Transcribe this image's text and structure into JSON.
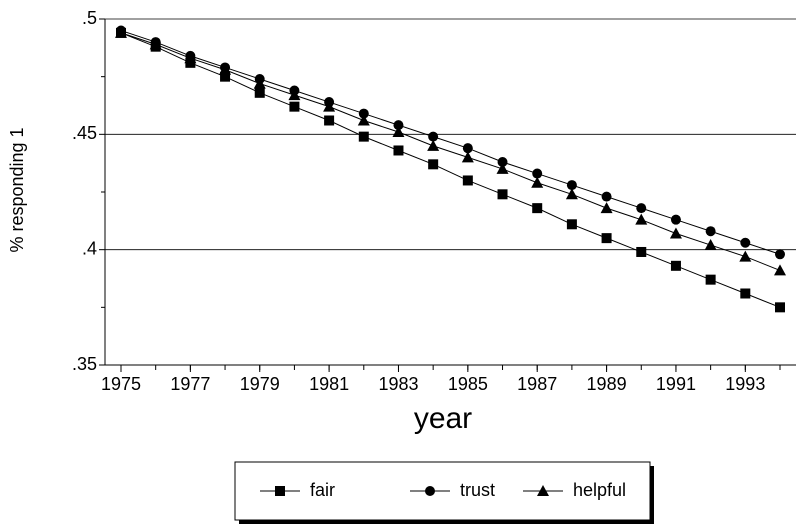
{
  "chart_data": {
    "type": "line",
    "x_label": "year",
    "y_label": "% responding 1",
    "x": [
      1975,
      1976,
      1977,
      1978,
      1979,
      1980,
      1981,
      1982,
      1983,
      1984,
      1985,
      1986,
      1987,
      1988,
      1989,
      1990,
      1991,
      1992,
      1993,
      1994
    ],
    "series": [
      {
        "name": "fair",
        "color": "#000000",
        "marker": "square",
        "values": [
          0.494,
          0.488,
          0.481,
          0.475,
          0.468,
          0.462,
          0.456,
          0.449,
          0.443,
          0.437,
          0.43,
          0.424,
          0.418,
          0.411,
          0.405,
          0.399,
          0.393,
          0.387,
          0.381,
          0.375
        ]
      },
      {
        "name": "trust",
        "color": "#000000",
        "marker": "circle",
        "values": [
          0.495,
          0.49,
          0.484,
          0.479,
          0.474,
          0.469,
          0.464,
          0.459,
          0.454,
          0.449,
          0.444,
          0.438,
          0.433,
          0.428,
          0.423,
          0.418,
          0.413,
          0.408,
          0.403,
          0.398
        ]
      },
      {
        "name": "helpful",
        "color": "#000000",
        "marker": "triangle",
        "values": [
          0.494,
          0.489,
          0.483,
          0.478,
          0.472,
          0.467,
          0.462,
          0.456,
          0.451,
          0.445,
          0.44,
          0.435,
          0.429,
          0.424,
          0.418,
          0.413,
          0.407,
          0.402,
          0.397,
          0.391
        ]
      }
    ],
    "xlim": [
      1975,
      1994
    ],
    "xticks": [
      1975,
      1977,
      1979,
      1981,
      1983,
      1985,
      1987,
      1989,
      1991,
      1993
    ],
    "ylim": [
      0.35,
      0.5
    ],
    "yticks": [
      {
        "value": 0.35,
        "label": ".35"
      },
      {
        "value": 0.4,
        "label": ".4"
      },
      {
        "value": 0.45,
        "label": ".45"
      },
      {
        "value": 0.5,
        "label": ".5"
      }
    ],
    "yminor_ticks": [
      0.375,
      0.425,
      0.475
    ],
    "grid": true,
    "legend": "bottom"
  }
}
